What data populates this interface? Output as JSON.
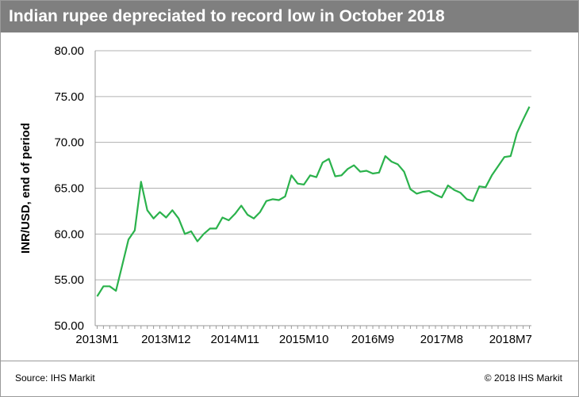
{
  "chart_data": {
    "type": "line",
    "title": "Indian rupee depreciated to record low in October 2018",
    "ylabel": "INR/USD, end of period",
    "xlabel": "",
    "ylim": [
      50,
      80
    ],
    "yticks": [
      "50.00",
      "55.00",
      "60.00",
      "65.00",
      "70.00",
      "75.00",
      "80.00"
    ],
    "xtick_labels": [
      "2013M1",
      "2013M12",
      "2014M11",
      "2015M10",
      "2016M9",
      "2017M8",
      "2018M7"
    ],
    "xtick_indices": [
      0,
      11,
      22,
      33,
      44,
      55,
      66
    ],
    "grid": "horizontal",
    "line_color": "#2bb24c",
    "series": [
      {
        "values": [
          53.2,
          54.3,
          54.3,
          53.8,
          56.6,
          59.4,
          60.4,
          65.7,
          62.6,
          61.7,
          62.4,
          61.8,
          62.6,
          61.7,
          60.0,
          60.3,
          59.2,
          60.0,
          60.6,
          60.6,
          61.8,
          61.5,
          62.2,
          63.1,
          62.1,
          61.7,
          62.4,
          63.6,
          63.8,
          63.7,
          64.1,
          66.4,
          65.5,
          65.4,
          66.4,
          66.2,
          67.8,
          68.2,
          66.3,
          66.4,
          67.1,
          67.5,
          66.8,
          66.9,
          66.6,
          66.7,
          68.5,
          67.9,
          67.6,
          66.8,
          64.9,
          64.4,
          64.6,
          64.7,
          64.3,
          64.0,
          65.3,
          64.8,
          64.5,
          63.8,
          63.6,
          65.2,
          65.1,
          66.4,
          67.4,
          68.4,
          68.5,
          71.0,
          72.5,
          73.9
        ]
      }
    ]
  },
  "footer": {
    "source": "Source: IHS Markit",
    "copyright": "© 2018 IHS Markit"
  }
}
